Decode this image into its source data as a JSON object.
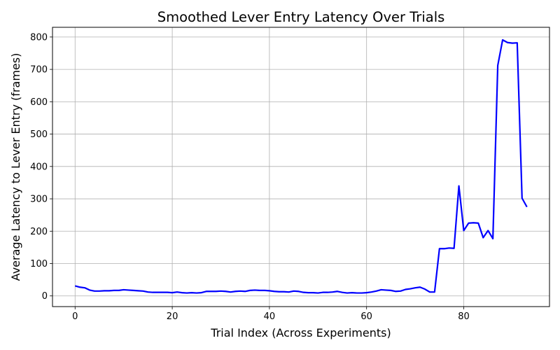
{
  "chart_data": {
    "type": "line",
    "title": "Smoothed Lever Entry Latency Over Trials",
    "xlabel": "Trial Index (Across Experiments)",
    "ylabel": "Average Latency to Lever Entry (frames)",
    "xlim": [
      -4.65,
      97.65
    ],
    "ylim": [
      -33,
      830
    ],
    "xticks": [
      0,
      20,
      40,
      60,
      80
    ],
    "yticks": [
      0,
      100,
      200,
      300,
      400,
      500,
      600,
      700,
      800
    ],
    "grid": true,
    "series": [
      {
        "color": "#0000ff",
        "x": [
          0,
          1,
          2,
          3,
          4,
          5,
          6,
          7,
          8,
          9,
          10,
          11,
          12,
          13,
          14,
          15,
          16,
          17,
          18,
          19,
          20,
          21,
          22,
          23,
          24,
          25,
          26,
          27,
          28,
          29,
          30,
          31,
          32,
          33,
          34,
          35,
          36,
          37,
          38,
          39,
          40,
          41,
          42,
          43,
          44,
          45,
          46,
          47,
          48,
          49,
          50,
          51,
          52,
          53,
          54,
          55,
          56,
          57,
          58,
          59,
          60,
          61,
          62,
          63,
          64,
          65,
          66,
          67,
          68,
          69,
          70,
          71,
          72,
          73,
          74,
          75,
          76,
          77,
          78,
          79,
          80,
          81,
          82,
          83,
          84,
          85,
          86,
          87,
          88,
          89,
          90,
          91,
          92,
          93
        ],
        "y": [
          31,
          27,
          25,
          18,
          15,
          15,
          16,
          16,
          17,
          17,
          19,
          18,
          17,
          16,
          15,
          12,
          11,
          11,
          11,
          11,
          10,
          12,
          10,
          9,
          10,
          9,
          10,
          14,
          14,
          14,
          15,
          14,
          12,
          14,
          15,
          14,
          17,
          18,
          17,
          17,
          16,
          14,
          13,
          13,
          12,
          15,
          14,
          11,
          10,
          10,
          9,
          11,
          11,
          12,
          14,
          11,
          9,
          10,
          9,
          9,
          10,
          12,
          15,
          19,
          18,
          17,
          14,
          15,
          20,
          22,
          25,
          27,
          21,
          12,
          12,
          146,
          146,
          148,
          147,
          340,
          202,
          225,
          226,
          225,
          180,
          202,
          177,
          712,
          791,
          783,
          781,
          782,
          302,
          275
        ]
      }
    ]
  }
}
